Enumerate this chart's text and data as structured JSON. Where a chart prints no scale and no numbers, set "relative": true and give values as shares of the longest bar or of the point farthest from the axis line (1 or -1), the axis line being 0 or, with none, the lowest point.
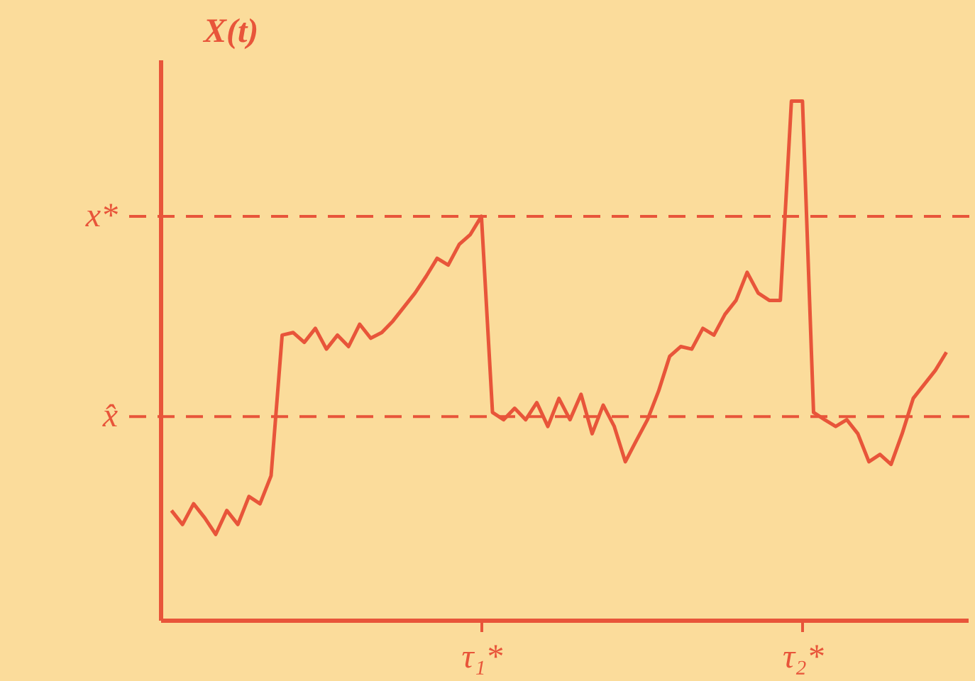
{
  "chart_data": {
    "type": "line",
    "relative": true,
    "ylabel": "X(t)",
    "color": "#e8553a",
    "line_style": "solid",
    "marker": "none",
    "grid": false,
    "tick_labels": "x",
    "categories": [
      null,
      null,
      null,
      null,
      null,
      null,
      null,
      null,
      null,
      null,
      null,
      null,
      null,
      null,
      null,
      null,
      null,
      null,
      null,
      null,
      null,
      null,
      null,
      null,
      null,
      null,
      null,
      null,
      "τ₁*",
      null,
      null,
      null,
      null,
      null,
      null,
      null,
      null,
      null,
      null,
      null,
      null,
      null,
      null,
      null,
      null,
      null,
      null,
      null,
      null,
      null,
      null,
      null,
      null,
      null,
      null,
      null,
      null,
      "τ₂*",
      null,
      null,
      null,
      null,
      null,
      null,
      null,
      null,
      null,
      null,
      null,
      null,
      null
    ],
    "values": [
      0.211,
      0.184,
      0.224,
      0.197,
      0.165,
      0.211,
      0.184,
      0.238,
      0.224,
      0.278,
      0.549,
      0.554,
      0.535,
      0.562,
      0.522,
      0.549,
      0.527,
      0.57,
      0.543,
      0.554,
      0.576,
      0.603,
      0.63,
      0.662,
      0.697,
      0.684,
      0.724,
      0.743,
      0.778,
      0.4,
      0.386,
      0.408,
      0.386,
      0.419,
      0.373,
      0.427,
      0.386,
      0.435,
      0.359,
      0.414,
      0.373,
      0.305,
      0.346,
      0.386,
      0.441,
      0.508,
      0.527,
      0.522,
      0.562,
      0.549,
      0.589,
      0.616,
      0.67,
      0.63,
      0.616,
      0.616,
      1.0,
      1.0,
      0.4,
      0.386,
      0.373,
      0.386,
      0.359,
      0.305,
      0.319,
      0.3,
      0.359,
      0.427,
      0.454,
      0.481,
      0.516
    ],
    "ref_lines": [
      {
        "axis": "y",
        "value": 0.778,
        "label": "x*",
        "line_style": "dashed"
      },
      {
        "axis": "y",
        "value": 0.392,
        "label": "x̂",
        "line_style": "dashed"
      }
    ]
  }
}
